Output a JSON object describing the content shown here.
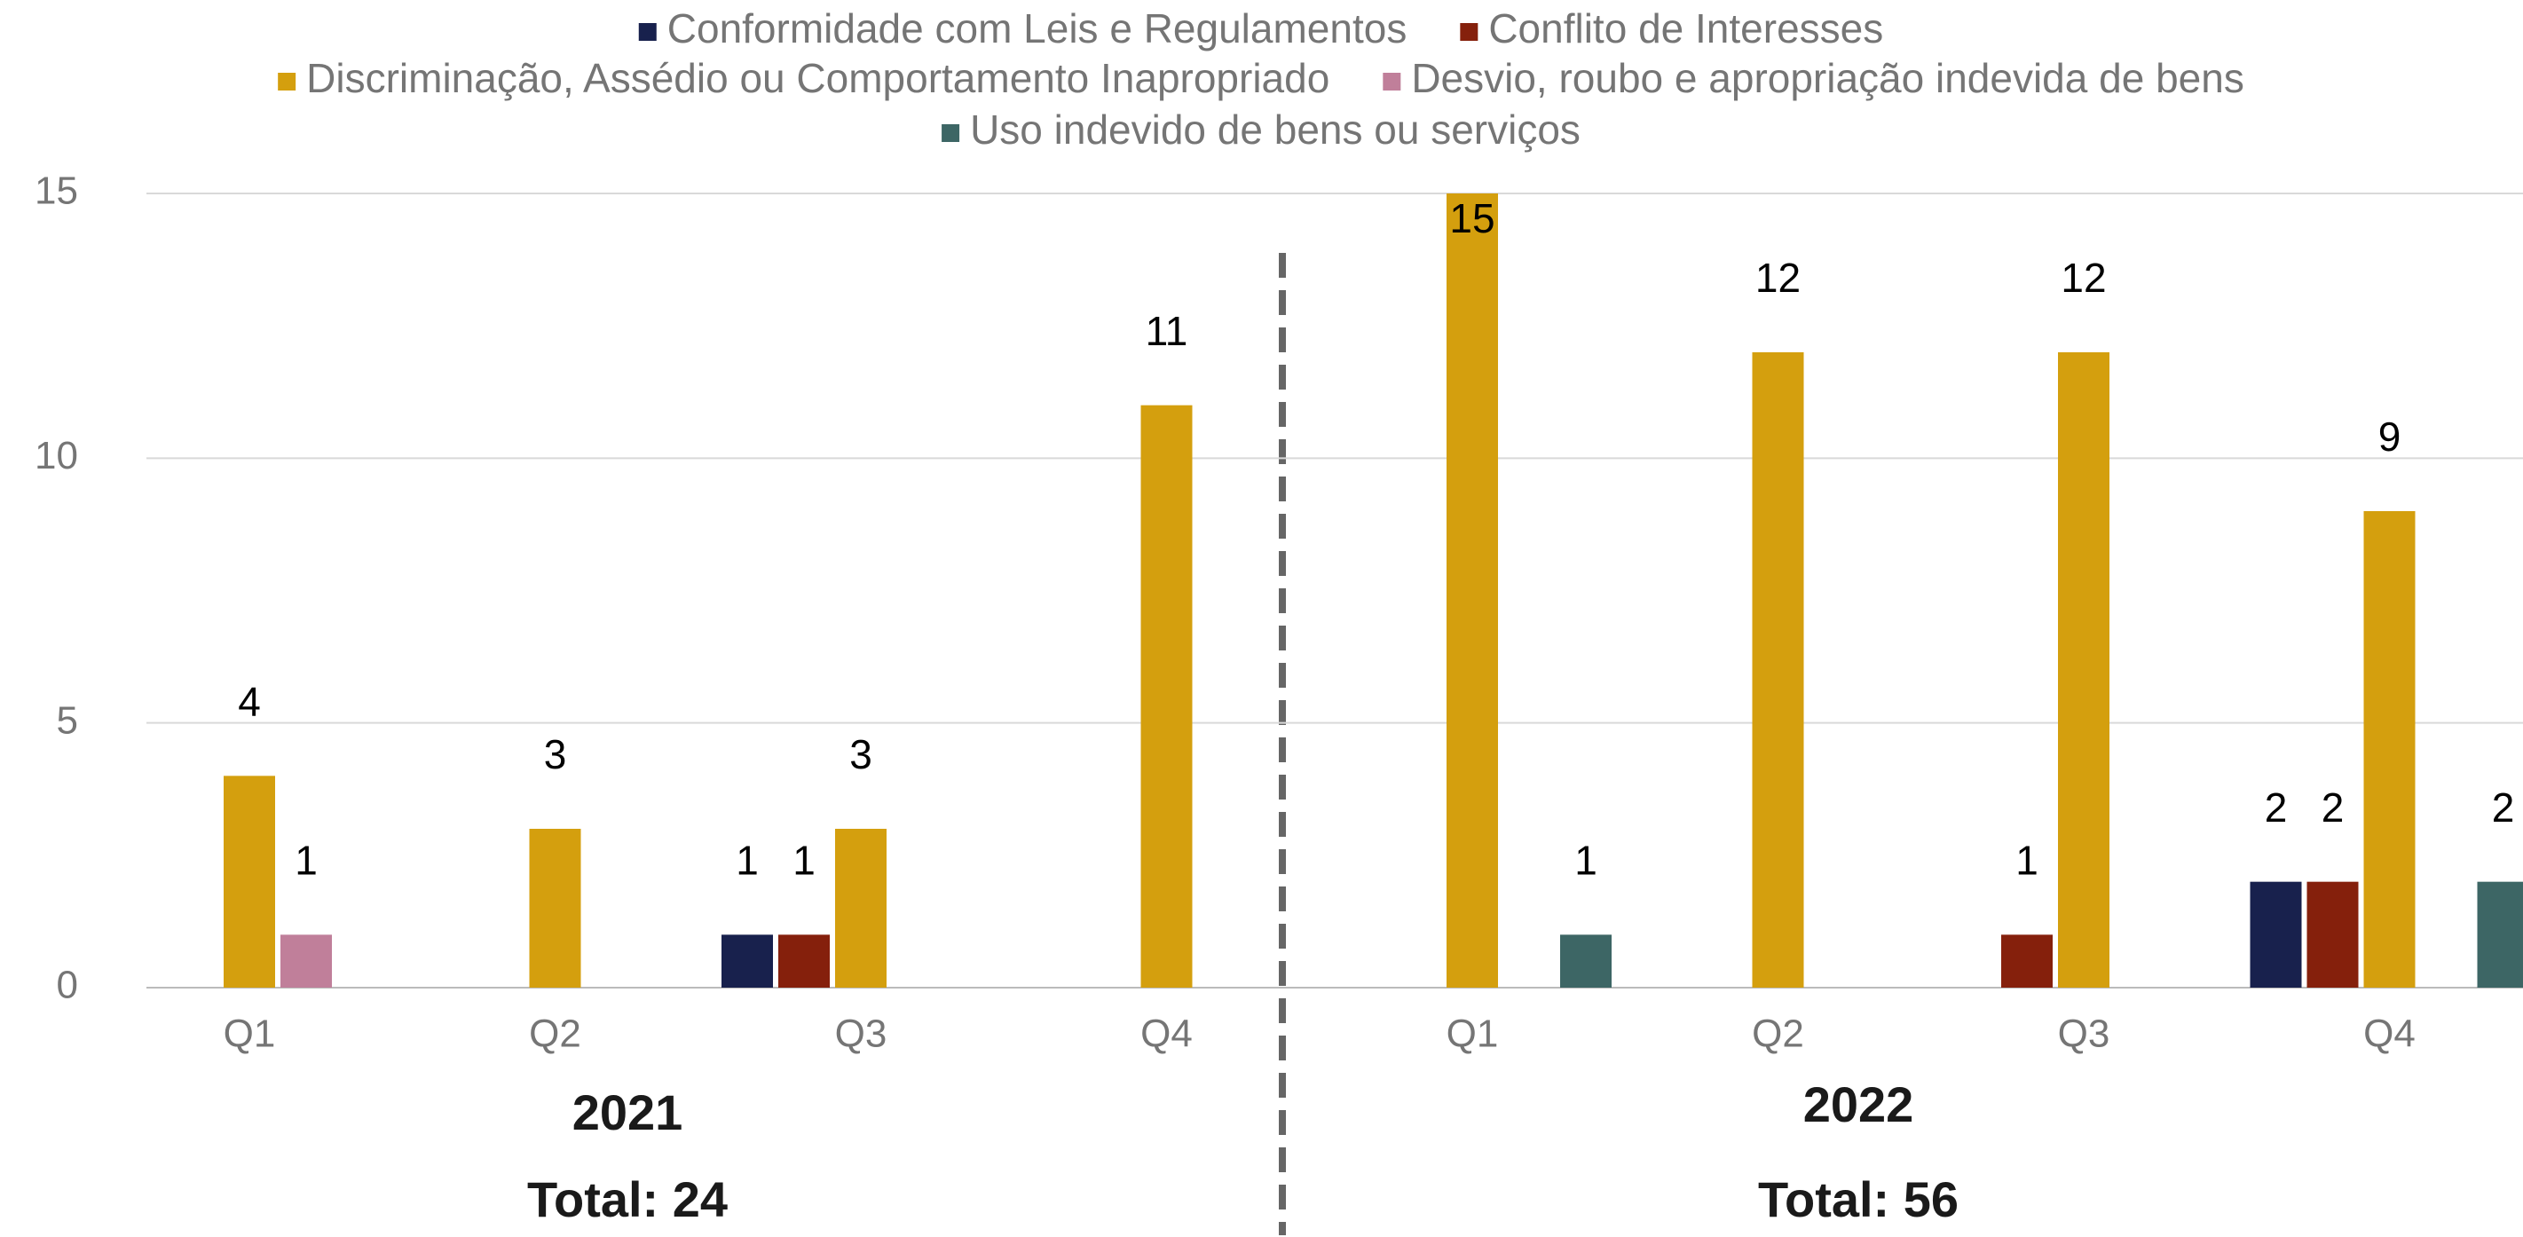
{
  "chart_data": {
    "type": "bar",
    "categories": [
      "Q1",
      "Q2",
      "Q3",
      "Q4",
      "Q1",
      "Q2",
      "Q3",
      "Q4"
    ],
    "series": [
      {
        "name": "Conformidade com Leis e Regulamentos",
        "color": "#18214d",
        "values": [
          null,
          null,
          1,
          null,
          null,
          null,
          null,
          2
        ]
      },
      {
        "name": "Conflito de Interesses",
        "color": "#85200c",
        "values": [
          null,
          null,
          1,
          null,
          null,
          null,
          1,
          2
        ]
      },
      {
        "name": "Discriminação, Assédio ou Comportamento Inapropriado",
        "color": "#d49f0e",
        "values": [
          4,
          3,
          3,
          11,
          15,
          12,
          12,
          9
        ]
      },
      {
        "name": "Desvio, roubo e apropriação indevida de bens",
        "color": "#c07f9a",
        "values": [
          1,
          null,
          null,
          null,
          null,
          null,
          null,
          null
        ]
      },
      {
        "name": "Uso indevido de bens ou serviços",
        "color": "#3d6665",
        "values": [
          null,
          null,
          null,
          null,
          1,
          null,
          null,
          2
        ]
      }
    ],
    "ylim": [
      0,
      15
    ],
    "yticks": [
      0,
      5,
      10,
      15
    ],
    "grid": true,
    "legend": "top",
    "annotations": [
      "2021",
      "Total: 24",
      "2022",
      "Total: 56"
    ]
  }
}
